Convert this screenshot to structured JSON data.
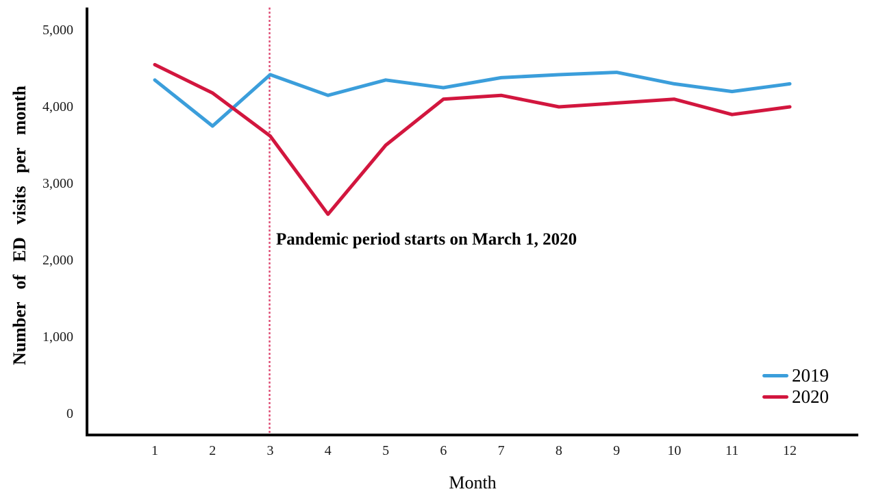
{
  "figure": {
    "background": "#ffffff"
  },
  "chart_data": {
    "type": "line",
    "x": [
      1,
      2,
      3,
      4,
      5,
      6,
      7,
      8,
      9,
      10,
      11,
      12
    ],
    "xlabel": "Month",
    "ylabel": "Number of ED visits per month",
    "ylim": [
      0,
      5300
    ],
    "yticks": [
      0,
      1000,
      2000,
      3000,
      4000,
      5000
    ],
    "ytick_labels": [
      "0",
      "1,000",
      "2,000",
      "3,000",
      "4,000",
      "5,000"
    ],
    "grid": false,
    "legend_position": "bottom-right",
    "series": [
      {
        "name": "2019",
        "color": "#3b9edb",
        "values": [
          4350,
          3750,
          4420,
          4150,
          4350,
          4250,
          4380,
          4420,
          4450,
          4300,
          4200,
          4300
        ]
      },
      {
        "name": "2020",
        "color": "#d2163e",
        "values": [
          4550,
          4180,
          3620,
          2600,
          3500,
          4100,
          4150,
          4000,
          4050,
          4100,
          3900,
          4000
        ]
      }
    ],
    "reference_line": {
      "axis": "x",
      "value": 3,
      "style": "dashed",
      "color": "#df5077"
    },
    "annotation": {
      "text": "Pandemic period starts on March 1, 2020",
      "at_month": 3
    },
    "axis_color": "#000000"
  }
}
